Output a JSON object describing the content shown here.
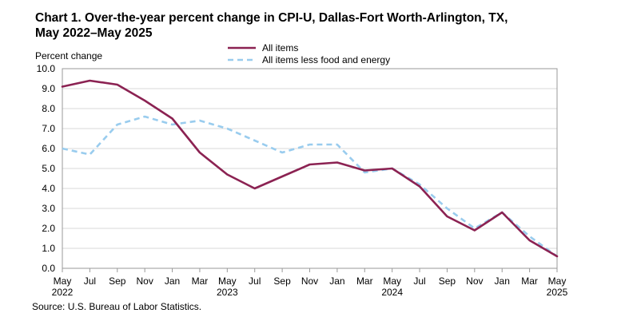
{
  "title_line1": "Chart 1. Over-the-year percent change in CPI-U, Dallas-Fort Worth-Arlington, TX,",
  "title_line2": "May 2022–May 2025",
  "source": "Source: U.S. Bureau of Labor Statistics.",
  "chart_data": {
    "type": "line",
    "ylabel": "Percent change",
    "ylim": [
      0,
      10
    ],
    "yticks": [
      "0.0",
      "1.0",
      "2.0",
      "3.0",
      "4.0",
      "5.0",
      "6.0",
      "7.0",
      "8.0",
      "9.0",
      "10.0"
    ],
    "x": [
      "May 2022",
      "Jul 2022",
      "Sep 2022",
      "Nov 2022",
      "Jan 2023",
      "Mar 2023",
      "May 2023",
      "Jul 2023",
      "Sep 2023",
      "Nov 2023",
      "Jan 2024",
      "Mar 2024",
      "May 2024",
      "Jul 2024",
      "Sep 2024",
      "Nov 2024",
      "Jan 2025",
      "Mar 2025",
      "May 2025"
    ],
    "xtick_labels": [
      {
        "month": "May",
        "year": "2022"
      },
      {
        "month": "Jul",
        "year": ""
      },
      {
        "month": "Sep",
        "year": ""
      },
      {
        "month": "Nov",
        "year": ""
      },
      {
        "month": "Jan",
        "year": ""
      },
      {
        "month": "Mar",
        "year": ""
      },
      {
        "month": "May",
        "year": "2023"
      },
      {
        "month": "Jul",
        "year": ""
      },
      {
        "month": "Sep",
        "year": ""
      },
      {
        "month": "Nov",
        "year": ""
      },
      {
        "month": "Jan",
        "year": ""
      },
      {
        "month": "Mar",
        "year": ""
      },
      {
        "month": "May",
        "year": "2024"
      },
      {
        "month": "Jul",
        "year": ""
      },
      {
        "month": "Sep",
        "year": ""
      },
      {
        "month": "Nov",
        "year": ""
      },
      {
        "month": "Jan",
        "year": ""
      },
      {
        "month": "Mar",
        "year": ""
      },
      {
        "month": "May",
        "year": "2025"
      }
    ],
    "legend_position": "top-center",
    "grid": "horizontal",
    "series": [
      {
        "name": "All items",
        "color": "#8b2252",
        "style": "solid",
        "values": [
          9.1,
          9.4,
          9.2,
          8.4,
          7.5,
          5.8,
          4.7,
          4.0,
          4.6,
          5.2,
          5.3,
          4.9,
          5.0,
          4.1,
          2.6,
          1.9,
          2.8,
          1.4,
          0.6
        ]
      },
      {
        "name": "All items less food and energy",
        "color": "#99ccee",
        "style": "dashed",
        "values": [
          6.0,
          5.7,
          7.2,
          7.6,
          7.2,
          7.4,
          7.0,
          6.4,
          5.8,
          6.2,
          6.2,
          4.8,
          5.0,
          4.2,
          3.0,
          2.0,
          2.8,
          1.6,
          0.6
        ]
      }
    ]
  }
}
